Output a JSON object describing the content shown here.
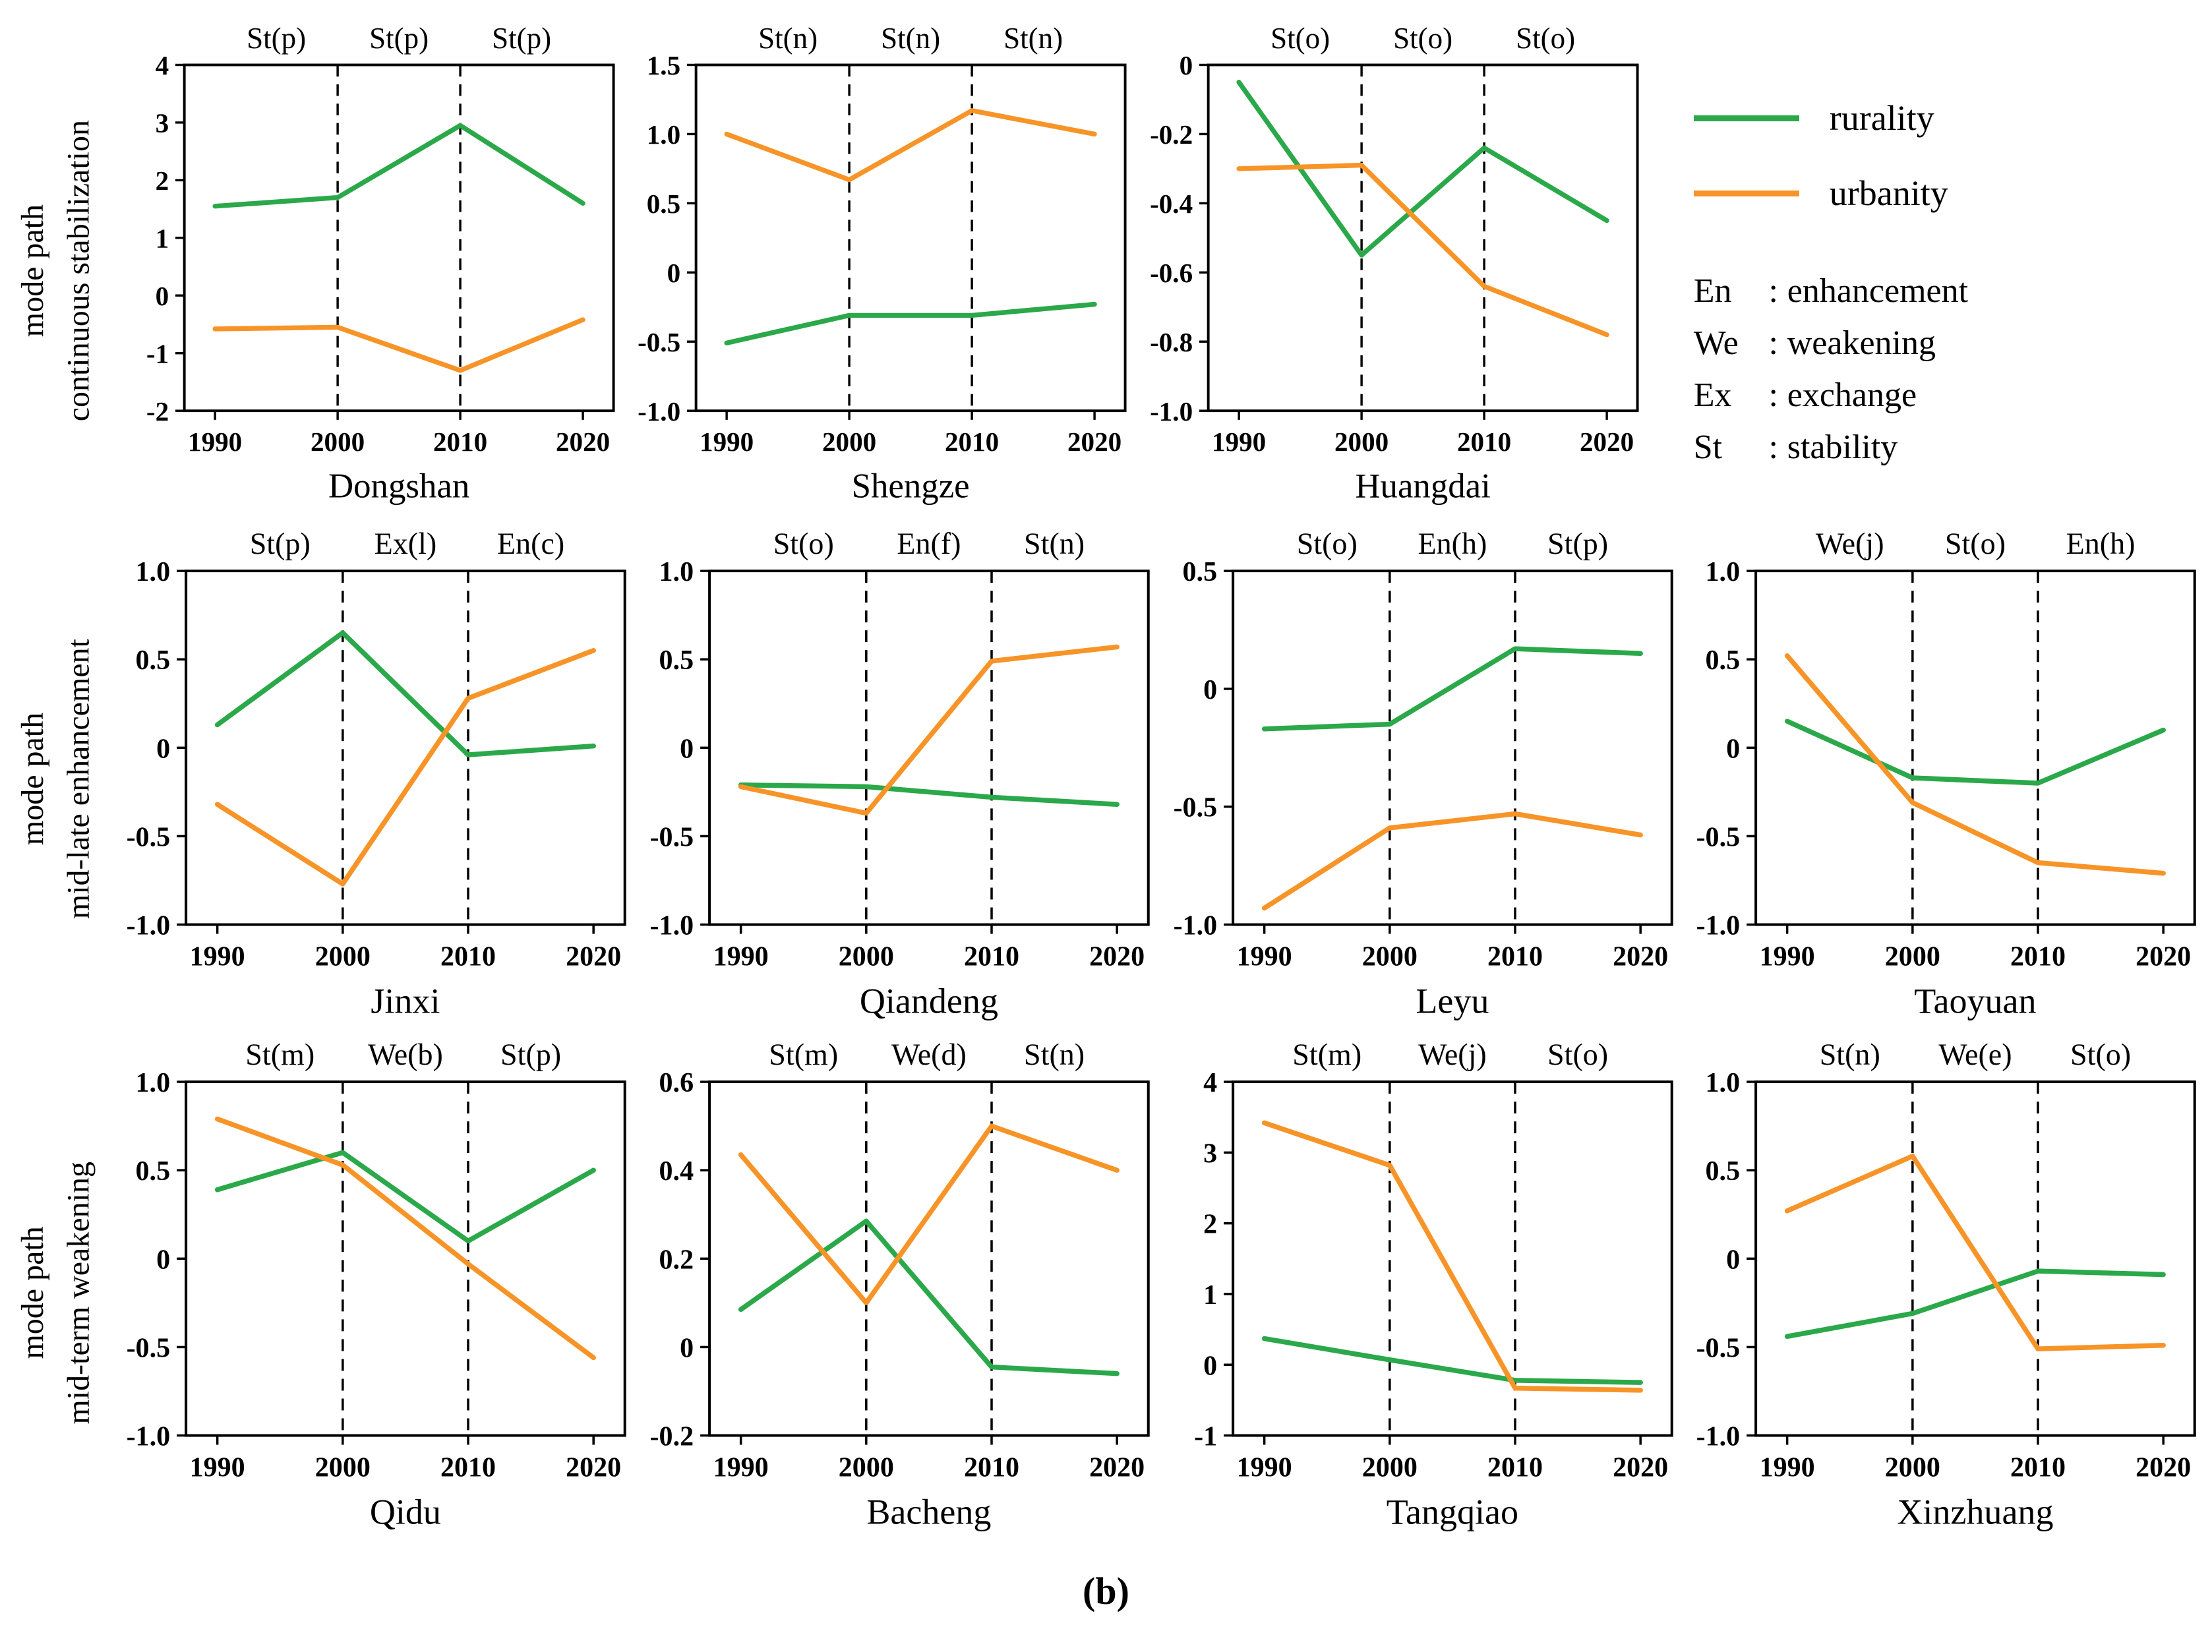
{
  "figure": {
    "caption": "(b)"
  },
  "legend": {
    "series": [
      {
        "name": "rurality",
        "color": "#2ba84a"
      },
      {
        "name": "urbanity",
        "color": "#f79428"
      }
    ],
    "abbreviations": [
      {
        "abbr": "En",
        "meaning": "enhancement"
      },
      {
        "abbr": "We",
        "meaning": "weakening"
      },
      {
        "abbr": "Ex",
        "meaning": "exchange"
      },
      {
        "abbr": "St",
        "meaning": "stability"
      }
    ]
  },
  "rows": [
    {
      "label_lines": [
        "continuous stabilization",
        "mode path"
      ]
    },
    {
      "label_lines": [
        "mid-late enhancement",
        "mode path"
      ]
    },
    {
      "label_lines": [
        "mid-term weakening",
        "mode path"
      ]
    }
  ],
  "chart_data": [
    {
      "type": "line",
      "row": 0,
      "title": "Dongshan",
      "x": [
        1990,
        2000,
        2010,
        2020
      ],
      "xlim": [
        1987.5,
        2022.5
      ],
      "ylim": [
        -2,
        4
      ],
      "ytick_values": [
        4,
        3,
        2,
        1,
        0,
        -1,
        -2
      ],
      "ytick_labels": [
        "4",
        "3",
        "2",
        "1",
        "0",
        "-1",
        "-2"
      ],
      "annotations": [
        "St(p)",
        "St(p)",
        "St(p)"
      ],
      "dashed_x": [
        2000,
        2010
      ],
      "series": [
        {
          "name": "rurality",
          "values": [
            1.55,
            1.7,
            2.95,
            1.6
          ]
        },
        {
          "name": "urbanity",
          "values": [
            -0.58,
            -0.55,
            -1.3,
            -0.42
          ]
        }
      ]
    },
    {
      "type": "line",
      "row": 0,
      "title": "Shengze",
      "x": [
        1990,
        2000,
        2010,
        2020
      ],
      "xlim": [
        1987.5,
        2022.5
      ],
      "ylim": [
        -1,
        1.5
      ],
      "ytick_values": [
        1.5,
        1.0,
        0.5,
        0,
        -0.5,
        -1.0
      ],
      "ytick_labels": [
        "1.5",
        "1.0",
        "0.5",
        "0",
        "-0.5",
        "-1.0"
      ],
      "annotations": [
        "St(n)",
        "St(n)",
        "St(n)"
      ],
      "dashed_x": [
        2000,
        2010
      ],
      "series": [
        {
          "name": "rurality",
          "values": [
            -0.51,
            -0.31,
            -0.31,
            -0.23
          ]
        },
        {
          "name": "urbanity",
          "values": [
            1.0,
            0.67,
            1.17,
            1.0
          ]
        }
      ]
    },
    {
      "type": "line",
      "row": 0,
      "title": "Huangdai",
      "x": [
        1990,
        2000,
        2010,
        2020
      ],
      "xlim": [
        1987.5,
        2022.5
      ],
      "ylim": [
        -1,
        0
      ],
      "ytick_values": [
        0,
        -0.2,
        -0.4,
        -0.6,
        -0.8,
        -1.0
      ],
      "ytick_labels": [
        "0",
        "-0.2",
        "-0.4",
        "-0.6",
        "-0.8",
        "-1.0"
      ],
      "annotations": [
        "St(o)",
        "St(o)",
        "St(o)"
      ],
      "dashed_x": [
        2000,
        2010
      ],
      "series": [
        {
          "name": "rurality",
          "values": [
            -0.05,
            -0.55,
            -0.24,
            -0.45
          ]
        },
        {
          "name": "urbanity",
          "values": [
            -0.3,
            -0.29,
            -0.64,
            -0.78
          ]
        }
      ]
    },
    {
      "type": "line",
      "row": 1,
      "title": "Jinxi",
      "x": [
        1990,
        2000,
        2010,
        2020
      ],
      "xlim": [
        1987.5,
        2022.5
      ],
      "ylim": [
        -1,
        1
      ],
      "ytick_values": [
        1.0,
        0.5,
        0,
        -0.5,
        -1.0
      ],
      "ytick_labels": [
        "1.0",
        "0.5",
        "0",
        "-0.5",
        "-1.0"
      ],
      "annotations": [
        "St(p)",
        "Ex(l)",
        "En(c)"
      ],
      "dashed_x": [
        2000,
        2010
      ],
      "series": [
        {
          "name": "rurality",
          "values": [
            0.13,
            0.65,
            -0.04,
            0.01
          ]
        },
        {
          "name": "urbanity",
          "values": [
            -0.32,
            -0.77,
            0.28,
            0.55
          ]
        }
      ]
    },
    {
      "type": "line",
      "row": 1,
      "title": "Qiandeng",
      "x": [
        1990,
        2000,
        2010,
        2020
      ],
      "xlim": [
        1987.5,
        2022.5
      ],
      "ylim": [
        -1,
        1
      ],
      "ytick_values": [
        1.0,
        0.5,
        0,
        -0.5,
        -1.0
      ],
      "ytick_labels": [
        "1.0",
        "0.5",
        "0",
        "-0.5",
        "-1.0"
      ],
      "annotations": [
        "St(o)",
        "En(f)",
        "St(n)"
      ],
      "dashed_x": [
        2000,
        2010
      ],
      "series": [
        {
          "name": "rurality",
          "values": [
            -0.21,
            -0.22,
            -0.28,
            -0.32
          ]
        },
        {
          "name": "urbanity",
          "values": [
            -0.22,
            -0.37,
            0.49,
            0.57
          ]
        }
      ]
    },
    {
      "type": "line",
      "row": 1,
      "title": "Leyu",
      "x": [
        1990,
        2000,
        2010,
        2020
      ],
      "xlim": [
        1987.5,
        2022.5
      ],
      "ylim": [
        -1,
        0.5
      ],
      "ytick_values": [
        0.5,
        0,
        -0.5,
        -1.0
      ],
      "ytick_labels": [
        "0.5",
        "0",
        "-0.5",
        "-1.0"
      ],
      "annotations": [
        "St(o)",
        "En(h)",
        "St(p)"
      ],
      "dashed_x": [
        2000,
        2010
      ],
      "series": [
        {
          "name": "rurality",
          "values": [
            -0.17,
            -0.15,
            0.17,
            0.15
          ]
        },
        {
          "name": "urbanity",
          "values": [
            -0.93,
            -0.59,
            -0.53,
            -0.62
          ]
        }
      ]
    },
    {
      "type": "line",
      "row": 1,
      "title": "Taoyuan",
      "x": [
        1990,
        2000,
        2010,
        2020
      ],
      "xlim": [
        1987.5,
        2022.5
      ],
      "ylim": [
        -1,
        1
      ],
      "ytick_values": [
        1.0,
        0.5,
        0,
        -0.5,
        -1.0
      ],
      "ytick_labels": [
        "1.0",
        "0.5",
        "0",
        "-0.5",
        "-1.0"
      ],
      "annotations": [
        "We(j)",
        "St(o)",
        "En(h)"
      ],
      "dashed_x": [
        2000,
        2010
      ],
      "series": [
        {
          "name": "rurality",
          "values": [
            0.15,
            -0.17,
            -0.2,
            0.1
          ]
        },
        {
          "name": "urbanity",
          "values": [
            0.52,
            -0.31,
            -0.65,
            -0.71
          ]
        }
      ]
    },
    {
      "type": "line",
      "row": 2,
      "title": "Qidu",
      "x": [
        1990,
        2000,
        2010,
        2020
      ],
      "xlim": [
        1987.5,
        2022.5
      ],
      "ylim": [
        -1,
        1
      ],
      "ytick_values": [
        1.0,
        0.5,
        0,
        -0.5,
        -1.0
      ],
      "ytick_labels": [
        "1.0",
        "0.5",
        "0",
        "-0.5",
        "-1.0"
      ],
      "annotations": [
        "St(m)",
        "We(b)",
        "St(p)"
      ],
      "dashed_x": [
        2000,
        2010
      ],
      "series": [
        {
          "name": "rurality",
          "values": [
            0.39,
            0.6,
            0.1,
            0.5
          ]
        },
        {
          "name": "urbanity",
          "values": [
            0.79,
            0.53,
            -0.03,
            -0.56
          ]
        }
      ]
    },
    {
      "type": "line",
      "row": 2,
      "title": "Bacheng",
      "x": [
        1990,
        2000,
        2010,
        2020
      ],
      "xlim": [
        1987.5,
        2022.5
      ],
      "ylim": [
        -0.2,
        0.6
      ],
      "ytick_values": [
        0.6,
        0.4,
        0.2,
        0,
        -0.2
      ],
      "ytick_labels": [
        "0.6",
        "0.4",
        "0.2",
        "0",
        "-0.2"
      ],
      "annotations": [
        "St(m)",
        "We(d)",
        "St(n)"
      ],
      "dashed_x": [
        2000,
        2010
      ],
      "series": [
        {
          "name": "rurality",
          "values": [
            0.085,
            0.285,
            -0.045,
            -0.06
          ]
        },
        {
          "name": "urbanity",
          "values": [
            0.435,
            0.1,
            0.5,
            0.4
          ]
        }
      ]
    },
    {
      "type": "line",
      "row": 2,
      "title": "Tangqiao",
      "x": [
        1990,
        2000,
        2010,
        2020
      ],
      "xlim": [
        1987.5,
        2022.5
      ],
      "ylim": [
        -1,
        4
      ],
      "ytick_values": [
        4,
        3,
        2,
        1,
        0,
        -1
      ],
      "ytick_labels": [
        "4",
        "3",
        "2",
        "1",
        "0",
        "-1"
      ],
      "annotations": [
        "St(m)",
        "We(j)",
        "St(o)"
      ],
      "dashed_x": [
        2000,
        2010
      ],
      "series": [
        {
          "name": "rurality",
          "values": [
            0.37,
            0.07,
            -0.22,
            -0.25
          ]
        },
        {
          "name": "urbanity",
          "values": [
            3.42,
            2.82,
            -0.33,
            -0.36
          ]
        }
      ]
    },
    {
      "type": "line",
      "row": 2,
      "title": "Xinzhuang",
      "x": [
        1990,
        2000,
        2010,
        2020
      ],
      "xlim": [
        1987.5,
        2022.5
      ],
      "ylim": [
        -1,
        1
      ],
      "ytick_values": [
        1.0,
        0.5,
        0,
        -0.5,
        -1.0
      ],
      "ytick_labels": [
        "1.0",
        "0.5",
        "0",
        "-0.5",
        "-1.0"
      ],
      "annotations": [
        "St(n)",
        "We(e)",
        "St(o)"
      ],
      "dashed_x": [
        2000,
        2010
      ],
      "series": [
        {
          "name": "rurality",
          "values": [
            -0.44,
            -0.31,
            -0.07,
            -0.09
          ]
        },
        {
          "name": "urbanity",
          "values": [
            0.27,
            0.58,
            -0.51,
            -0.49
          ]
        }
      ]
    }
  ]
}
